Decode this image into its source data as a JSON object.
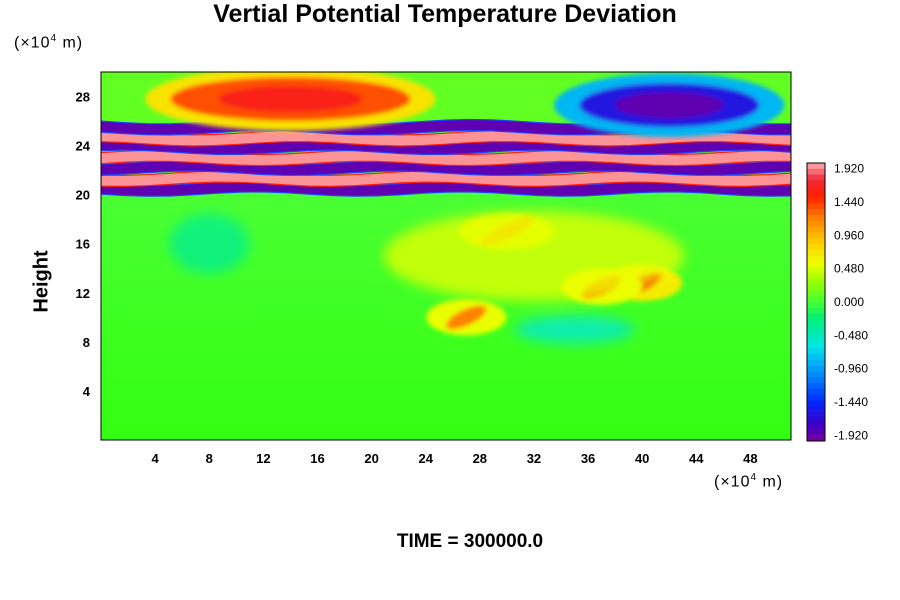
{
  "chart_data": {
    "type": "heatmap",
    "title": "Vertial Potential Temperature Deviation",
    "ylabel": "Height",
    "y_unit_prefix": "(×10",
    "y_unit_exp": "4",
    "y_unit_suffix": " m)",
    "x_unit_prefix": "(×10",
    "x_unit_exp": "4",
    "x_unit_suffix": " m)",
    "xlim": [
      0,
      51
    ],
    "ylim": [
      0,
      30
    ],
    "x_ticks": [
      "4",
      "8",
      "12",
      "16",
      "20",
      "24",
      "28",
      "32",
      "36",
      "40",
      "44",
      "48"
    ],
    "y_ticks": [
      "4",
      "8",
      "12",
      "16",
      "20",
      "24",
      "28"
    ],
    "colorbar": {
      "min": -2.0,
      "max": 2.0,
      "tick_labels": [
        "1.920",
        "1.440",
        "0.960",
        "0.480",
        "0.000",
        "-0.480",
        "-0.960",
        "-1.440",
        "-1.920"
      ],
      "tick_values": [
        1.92,
        1.44,
        0.96,
        0.48,
        0.0,
        -0.48,
        -0.96,
        -1.44,
        -1.92
      ]
    },
    "bands": [
      {
        "y": 20.5,
        "value": -1.9
      },
      {
        "y": 21.3,
        "value": 1.95
      },
      {
        "y": 22.2,
        "value": -1.9
      },
      {
        "y": 23.0,
        "value": 1.95
      },
      {
        "y": 23.9,
        "value": -1.9
      },
      {
        "y": 24.6,
        "value": 1.95
      },
      {
        "y": 25.5,
        "value": -1.9
      }
    ],
    "features": [
      {
        "x": 14,
        "y": 27.8,
        "value": 1.6
      },
      {
        "x": 42,
        "y": 27.3,
        "value": -1.9
      },
      {
        "x": 40,
        "y": 12.8,
        "value": 1.5
      },
      {
        "x": 37,
        "y": 12.5,
        "value": 1.2
      },
      {
        "x": 27,
        "y": 10.0,
        "value": 1.2
      },
      {
        "x": 30,
        "y": 17.0,
        "value": 1.0
      }
    ],
    "background_value": 0.0
  },
  "footer": {
    "time_label": "TIME = 300000.0"
  }
}
